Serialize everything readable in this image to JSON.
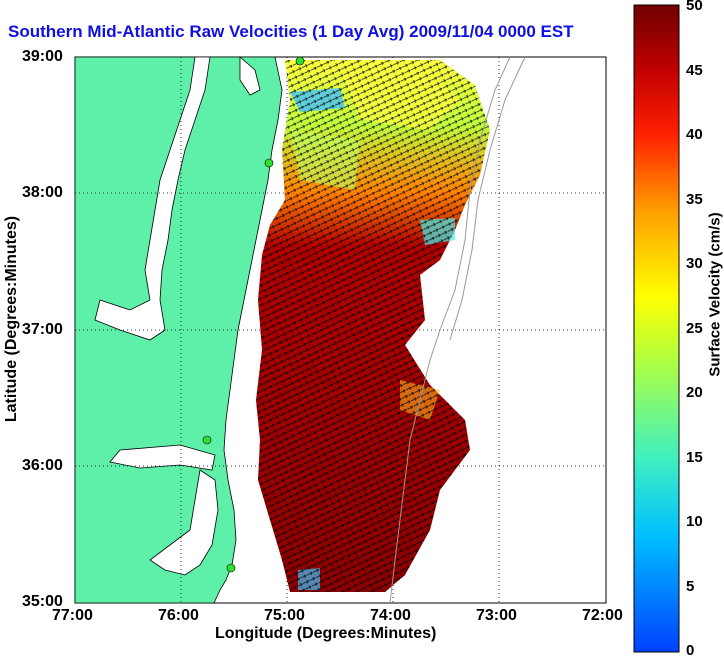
{
  "title": "Southern Mid-Atlantic Raw Velocities (1 Day Avg) 2009/11/04 0000 EST",
  "xlabel": "Longitude (Degrees:Minutes)",
  "ylabel": "Latitude (Degrees:Minutes)",
  "colorbar": {
    "label": "Surface Velocity (cm/s)",
    "ticks": [
      "0",
      "5",
      "10",
      "15",
      "20",
      "25",
      "30",
      "35",
      "40",
      "45",
      "50"
    ],
    "range": [
      0,
      50
    ]
  },
  "x_ticks": [
    "77:00",
    "76:00",
    "75:00",
    "74:00",
    "73:00",
    "72:00"
  ],
  "y_ticks": [
    "39:00",
    "38:00",
    "37:00",
    "36:00",
    "35:00"
  ],
  "colors": {
    "land": "#5ef0a8",
    "title": "#1010e0",
    "station": "#30e030"
  }
}
